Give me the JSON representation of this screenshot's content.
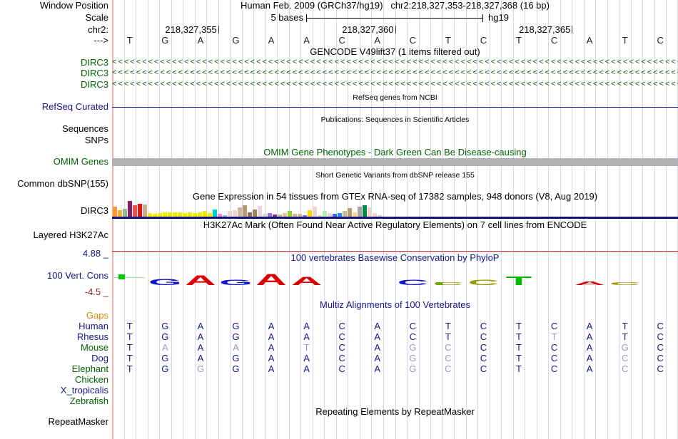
{
  "colors": {
    "navy": "#16168B",
    "green": "#006400",
    "orange": "#DD8800",
    "dark_red": "#8B2222",
    "black": "#000000",
    "seq_letter": "#222222",
    "light_base": "#9B9BC4",
    "grid": "#D8D8EF",
    "pink_guide": "#F2AFAF",
    "gray_bar": "#B3B3B3",
    "gtex_baseline": "#10107E",
    "h3k27ac_line": "#C22222",
    "cons_dash_line": "#9FE89F",
    "cons_green": "#00CC00"
  },
  "window": {
    "title": "Human Feb. 2009 (GRCh37/hg19)   chr2:218,327,353-218,327,368 (16 bp)",
    "row_labels": {
      "position": "Window Position",
      "scale": "Scale",
      "chrom": "chr2:",
      "strand": "--->"
    },
    "scale_text": "5 bases",
    "assembly": "hg19"
  },
  "ruler": {
    "coords": [
      "218,327,355",
      "218,327,360",
      "218,327,365"
    ],
    "sequence": "TGAGAACACTCTCATC"
  },
  "tracks": {
    "gencode": {
      "title": "GENCODE V49lift37 (1 items filtered out)",
      "genes": [
        {
          "label": "DIRC3"
        },
        {
          "label": "DIRC3"
        },
        {
          "label": "DIRC3"
        }
      ],
      "arrow_char": "<",
      "arrow_count": 96
    },
    "refseq": {
      "title": "RefSeq genes from NCBI",
      "label": "RefSeq Curated"
    },
    "publications": {
      "title": "Publications: Sequences in Scientific Articles",
      "label_sequences": "Sequences",
      "label_snps": "SNPs"
    },
    "omim": {
      "title": "OMIM Gene Phenotypes - Dark Green Can Be Disease-causing",
      "label": "OMIM Genes"
    },
    "dbsnp": {
      "title": "Short Genetic Variants from dbSNP release 155",
      "label": "Common dbSNP(155)"
    },
    "gtex": {
      "title": "Gene Expression in 54 tissues from GTEx RNA-seq of 17382 samples, 948 donors (V8, Aug 2019)",
      "label": "DIRC3"
    },
    "h3k27ac": {
      "title": "H3K27Ac Mark (Often Found Near Active Regulatory Elements) on 7 cell lines from ENCODE",
      "label": "Layered H3K27Ac"
    },
    "conservation": {
      "title": "100 vertebrates Basewise Conservation by PhyloP",
      "label": "100 Vert. Cons",
      "max_label": "4.88 _",
      "min_label": "-4.5 _"
    },
    "multiz": {
      "title": "Multiz Alignments of 100 Vertebrates",
      "rows": [
        {
          "label": "Gaps",
          "color": "#DD8800",
          "seq": "",
          "mask": ""
        },
        {
          "label": "Human",
          "color": "#16168B",
          "seq": "TGAGAACACTCTCATC",
          "mask": "0000000000000000"
        },
        {
          "label": "Rhesus",
          "color": "#16168B",
          "seq": "TGAGAACACTCTTATC",
          "mask": "0000000000001000"
        },
        {
          "label": "Mouse",
          "color": "#006400",
          "seq": "TAAAATCAGCCTCAGC",
          "mask": "0101010011000010"
        },
        {
          "label": "Dog",
          "color": "#16168B",
          "seq": "TGAGAACAGCCTCACC",
          "mask": "0000000011000010"
        },
        {
          "label": "Elephant",
          "color": "#006400",
          "seq": "TGGGAACAGCCTCACC",
          "mask": "0010000011000010"
        },
        {
          "label": "Chicken",
          "color": "#006400",
          "seq": "",
          "mask": ""
        },
        {
          "label": "X_tropicalis",
          "color": "#16168B",
          "seq": "",
          "mask": ""
        },
        {
          "label": "Zebrafish",
          "color": "#006400",
          "seq": "",
          "mask": ""
        }
      ]
    },
    "repeatmasker": {
      "title": "Repeating Elements by RepeatMasker",
      "label": "RepeatMasker"
    }
  },
  "chart_data": [
    {
      "type": "bar",
      "title": "Gene Expression in 54 tissues from GTEx RNA-seq (DIRC3)",
      "note": "54 tissue bars, GTEx tissue color convention, heights in px as drawn",
      "bars": [
        {
          "h": 14,
          "c": "#FF9933"
        },
        {
          "h": 9,
          "c": "#FFAA33"
        },
        {
          "h": 11,
          "c": "#8FBC8F"
        },
        {
          "h": 22,
          "c": "#8B1C62"
        },
        {
          "h": 16,
          "c": "#E0554D"
        },
        {
          "h": 18,
          "c": "#EE1111"
        },
        {
          "h": 17,
          "c": "#C8AE8C"
        },
        {
          "h": 5,
          "c": "#EEEE00"
        },
        {
          "h": 4,
          "c": "#EEEE00"
        },
        {
          "h": 5,
          "c": "#EEEE00"
        },
        {
          "h": 6,
          "c": "#EEEE00"
        },
        {
          "h": 6,
          "c": "#EEEE00"
        },
        {
          "h": 6,
          "c": "#EEEE00"
        },
        {
          "h": 6,
          "c": "#EEEE00"
        },
        {
          "h": 5,
          "c": "#EEEE00"
        },
        {
          "h": 6,
          "c": "#EEEE00"
        },
        {
          "h": 5,
          "c": "#EEEE00"
        },
        {
          "h": 6,
          "c": "#EEEE00"
        },
        {
          "h": 8,
          "c": "#EEEE00"
        },
        {
          "h": 5,
          "c": "#EEEE00"
        },
        {
          "h": 10,
          "c": "#00CDCD"
        },
        {
          "h": 4,
          "c": "#EE82EE"
        },
        {
          "h": 2,
          "c": "#9AC0CD"
        },
        {
          "h": 8,
          "c": "#EED5D2"
        },
        {
          "h": 9,
          "c": "#EED5D2"
        },
        {
          "h": 13,
          "c": "#CDB79E"
        },
        {
          "h": 16,
          "c": "#B89B74"
        },
        {
          "h": 6,
          "c": "#8B7355"
        },
        {
          "h": 10,
          "c": "#A08563"
        },
        {
          "h": 15,
          "c": "#EED5D2"
        },
        {
          "h": 4,
          "c": "#D9D9D9"
        },
        {
          "h": 5,
          "c": "#9370DB"
        },
        {
          "h": 3,
          "c": "#7A378B"
        },
        {
          "h": 3,
          "c": "#CDB79E"
        },
        {
          "h": 5,
          "c": "#D8C3A6"
        },
        {
          "h": 8,
          "c": "#9ACD32"
        },
        {
          "h": 4,
          "c": "#CDB79E"
        },
        {
          "h": 4,
          "c": "#CDB79E"
        },
        {
          "h": 2,
          "c": "#8470FF"
        },
        {
          "h": 9,
          "c": "#FFD700"
        },
        {
          "h": 14,
          "c": "#EED5D2"
        },
        {
          "h": 2,
          "c": "#E8D8C8"
        },
        {
          "h": 8,
          "c": "#B4EEB4"
        },
        {
          "h": 5,
          "c": "#D9D9D9"
        },
        {
          "h": 4,
          "c": "#4169E1"
        },
        {
          "h": 5,
          "c": "#1E90FF"
        },
        {
          "h": 8,
          "c": "#CDB79E"
        },
        {
          "h": 12,
          "c": "#B89B74"
        },
        {
          "h": 6,
          "c": "#FFD39B"
        },
        {
          "h": 14,
          "c": "#A6A6A6"
        },
        {
          "h": 16,
          "c": "#008B45"
        },
        {
          "h": 13,
          "c": "#EED5D2"
        },
        {
          "h": 5,
          "c": "#EED5D2"
        },
        {
          "h": 2,
          "c": "#D9D9D9"
        }
      ]
    },
    {
      "type": "logo",
      "title": "100 vertebrates Basewise Conservation by PhyloP (per-base letters)",
      "letters": [
        {
          "i": 2,
          "ch": "G",
          "c": "#1111CC",
          "h": 9
        },
        {
          "i": 3,
          "ch": "A",
          "c": "#DD0000",
          "h": 14
        },
        {
          "i": 4,
          "ch": "G",
          "c": "#1111CC",
          "h": 8
        },
        {
          "i": 5,
          "ch": "A",
          "c": "#DD0000",
          "h": 16
        },
        {
          "i": 6,
          "ch": "A",
          "c": "#DD0000",
          "h": 12
        },
        {
          "i": 9,
          "ch": "C",
          "c": "#1111CC",
          "h": 8
        },
        {
          "i": 10,
          "ch": "C",
          "c": "#999900",
          "h": 4
        },
        {
          "i": 11,
          "ch": "C",
          "c": "#999900",
          "h": 8
        },
        {
          "i": 12,
          "ch": "T",
          "c": "#00BB00",
          "h": 13
        },
        {
          "i": 14,
          "ch": "A",
          "c": "#DD0000",
          "h": 5
        },
        {
          "i": 15,
          "ch": "C",
          "c": "#999900",
          "h": 4
        }
      ]
    }
  ]
}
